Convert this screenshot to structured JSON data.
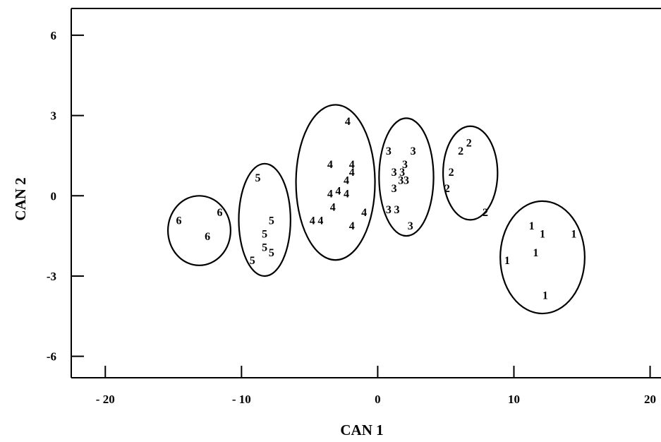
{
  "chart_data": {
    "type": "scatter",
    "title": "",
    "xlabel": "CAN 1",
    "ylabel": "CAN 2",
    "xlim": [
      -22.5,
      20.8
    ],
    "ylim": [
      -6.8,
      7
    ],
    "xticks": [
      -20,
      -10,
      0,
      10,
      20
    ],
    "xtick_labels": [
      "- 20",
      "- 10",
      "0",
      "10",
      "20"
    ],
    "yticks": [
      -6,
      -3,
      0,
      3,
      6
    ],
    "ytick_labels": [
      "-6",
      "-3",
      "0",
      "3",
      "6"
    ],
    "grid": false,
    "legend": "none",
    "points": [
      {
        "x": -14.6,
        "y": -0.9,
        "label": "6"
      },
      {
        "x": -11.6,
        "y": -0.6,
        "label": "6"
      },
      {
        "x": -12.5,
        "y": -1.5,
        "label": "6"
      },
      {
        "x": -8.8,
        "y": 0.7,
        "label": "5"
      },
      {
        "x": -7.8,
        "y": -0.9,
        "label": "5"
      },
      {
        "x": -8.3,
        "y": -1.4,
        "label": "5"
      },
      {
        "x": -8.3,
        "y": -1.9,
        "label": "5"
      },
      {
        "x": -7.8,
        "y": -2.1,
        "label": "5"
      },
      {
        "x": -9.2,
        "y": -2.4,
        "label": "5"
      },
      {
        "x": -2.2,
        "y": 2.8,
        "label": "4"
      },
      {
        "x": -3.5,
        "y": 1.2,
        "label": "4"
      },
      {
        "x": -1.9,
        "y": 1.2,
        "label": "4"
      },
      {
        "x": -1.9,
        "y": 0.9,
        "label": "4"
      },
      {
        "x": -2.3,
        "y": 0.6,
        "label": "4"
      },
      {
        "x": -3.5,
        "y": 0.1,
        "label": "4"
      },
      {
        "x": -2.9,
        "y": 0.2,
        "label": "4"
      },
      {
        "x": -2.3,
        "y": 0.1,
        "label": "4"
      },
      {
        "x": -3.3,
        "y": -0.4,
        "label": "4"
      },
      {
        "x": -4.8,
        "y": -0.9,
        "label": "4"
      },
      {
        "x": -4.2,
        "y": -0.9,
        "label": "4"
      },
      {
        "x": -1.0,
        "y": -0.6,
        "label": "4"
      },
      {
        "x": -1.9,
        "y": -1.1,
        "label": "4"
      },
      {
        "x": 0.8,
        "y": 1.7,
        "label": "3"
      },
      {
        "x": 2.6,
        "y": 1.7,
        "label": "3"
      },
      {
        "x": 2.0,
        "y": 1.2,
        "label": "3"
      },
      {
        "x": 1.2,
        "y": 0.9,
        "label": "3"
      },
      {
        "x": 1.8,
        "y": 0.9,
        "label": "3"
      },
      {
        "x": 1.7,
        "y": 0.6,
        "label": "3"
      },
      {
        "x": 2.1,
        "y": 0.6,
        "label": "3"
      },
      {
        "x": 1.2,
        "y": 0.3,
        "label": "3"
      },
      {
        "x": 0.8,
        "y": -0.5,
        "label": "3"
      },
      {
        "x": 1.4,
        "y": -0.5,
        "label": "3"
      },
      {
        "x": 2.4,
        "y": -1.1,
        "label": "3"
      },
      {
        "x": 6.7,
        "y": 2.0,
        "label": "2"
      },
      {
        "x": 6.1,
        "y": 1.7,
        "label": "2"
      },
      {
        "x": 5.4,
        "y": 0.9,
        "label": "2"
      },
      {
        "x": 5.1,
        "y": 0.3,
        "label": "2"
      },
      {
        "x": 7.9,
        "y": -0.6,
        "label": "2"
      },
      {
        "x": 11.3,
        "y": -1.1,
        "label": "1"
      },
      {
        "x": 12.1,
        "y": -1.4,
        "label": "1"
      },
      {
        "x": 14.4,
        "y": -1.4,
        "label": "1"
      },
      {
        "x": 11.6,
        "y": -2.1,
        "label": "1"
      },
      {
        "x": 9.5,
        "y": -2.4,
        "label": "1"
      },
      {
        "x": 12.3,
        "y": -3.7,
        "label": "1"
      }
    ],
    "groups": [
      {
        "label": "6",
        "cx": -13.1,
        "cy": -1.3,
        "rx": 2.3,
        "ry": 1.3
      },
      {
        "label": "5",
        "cx": -8.3,
        "cy": -0.9,
        "rx": 1.9,
        "ry": 2.1
      },
      {
        "label": "4",
        "cx": -3.1,
        "cy": 0.5,
        "rx": 2.9,
        "ry": 2.9
      },
      {
        "label": "3",
        "cx": 2.1,
        "cy": 0.7,
        "rx": 2.0,
        "ry": 2.2
      },
      {
        "label": "2",
        "cx": 6.8,
        "cy": 0.85,
        "rx": 2.0,
        "ry": 1.75
      },
      {
        "label": "1",
        "cx": 12.1,
        "cy": -2.3,
        "rx": 3.1,
        "ry": 2.1
      }
    ]
  }
}
